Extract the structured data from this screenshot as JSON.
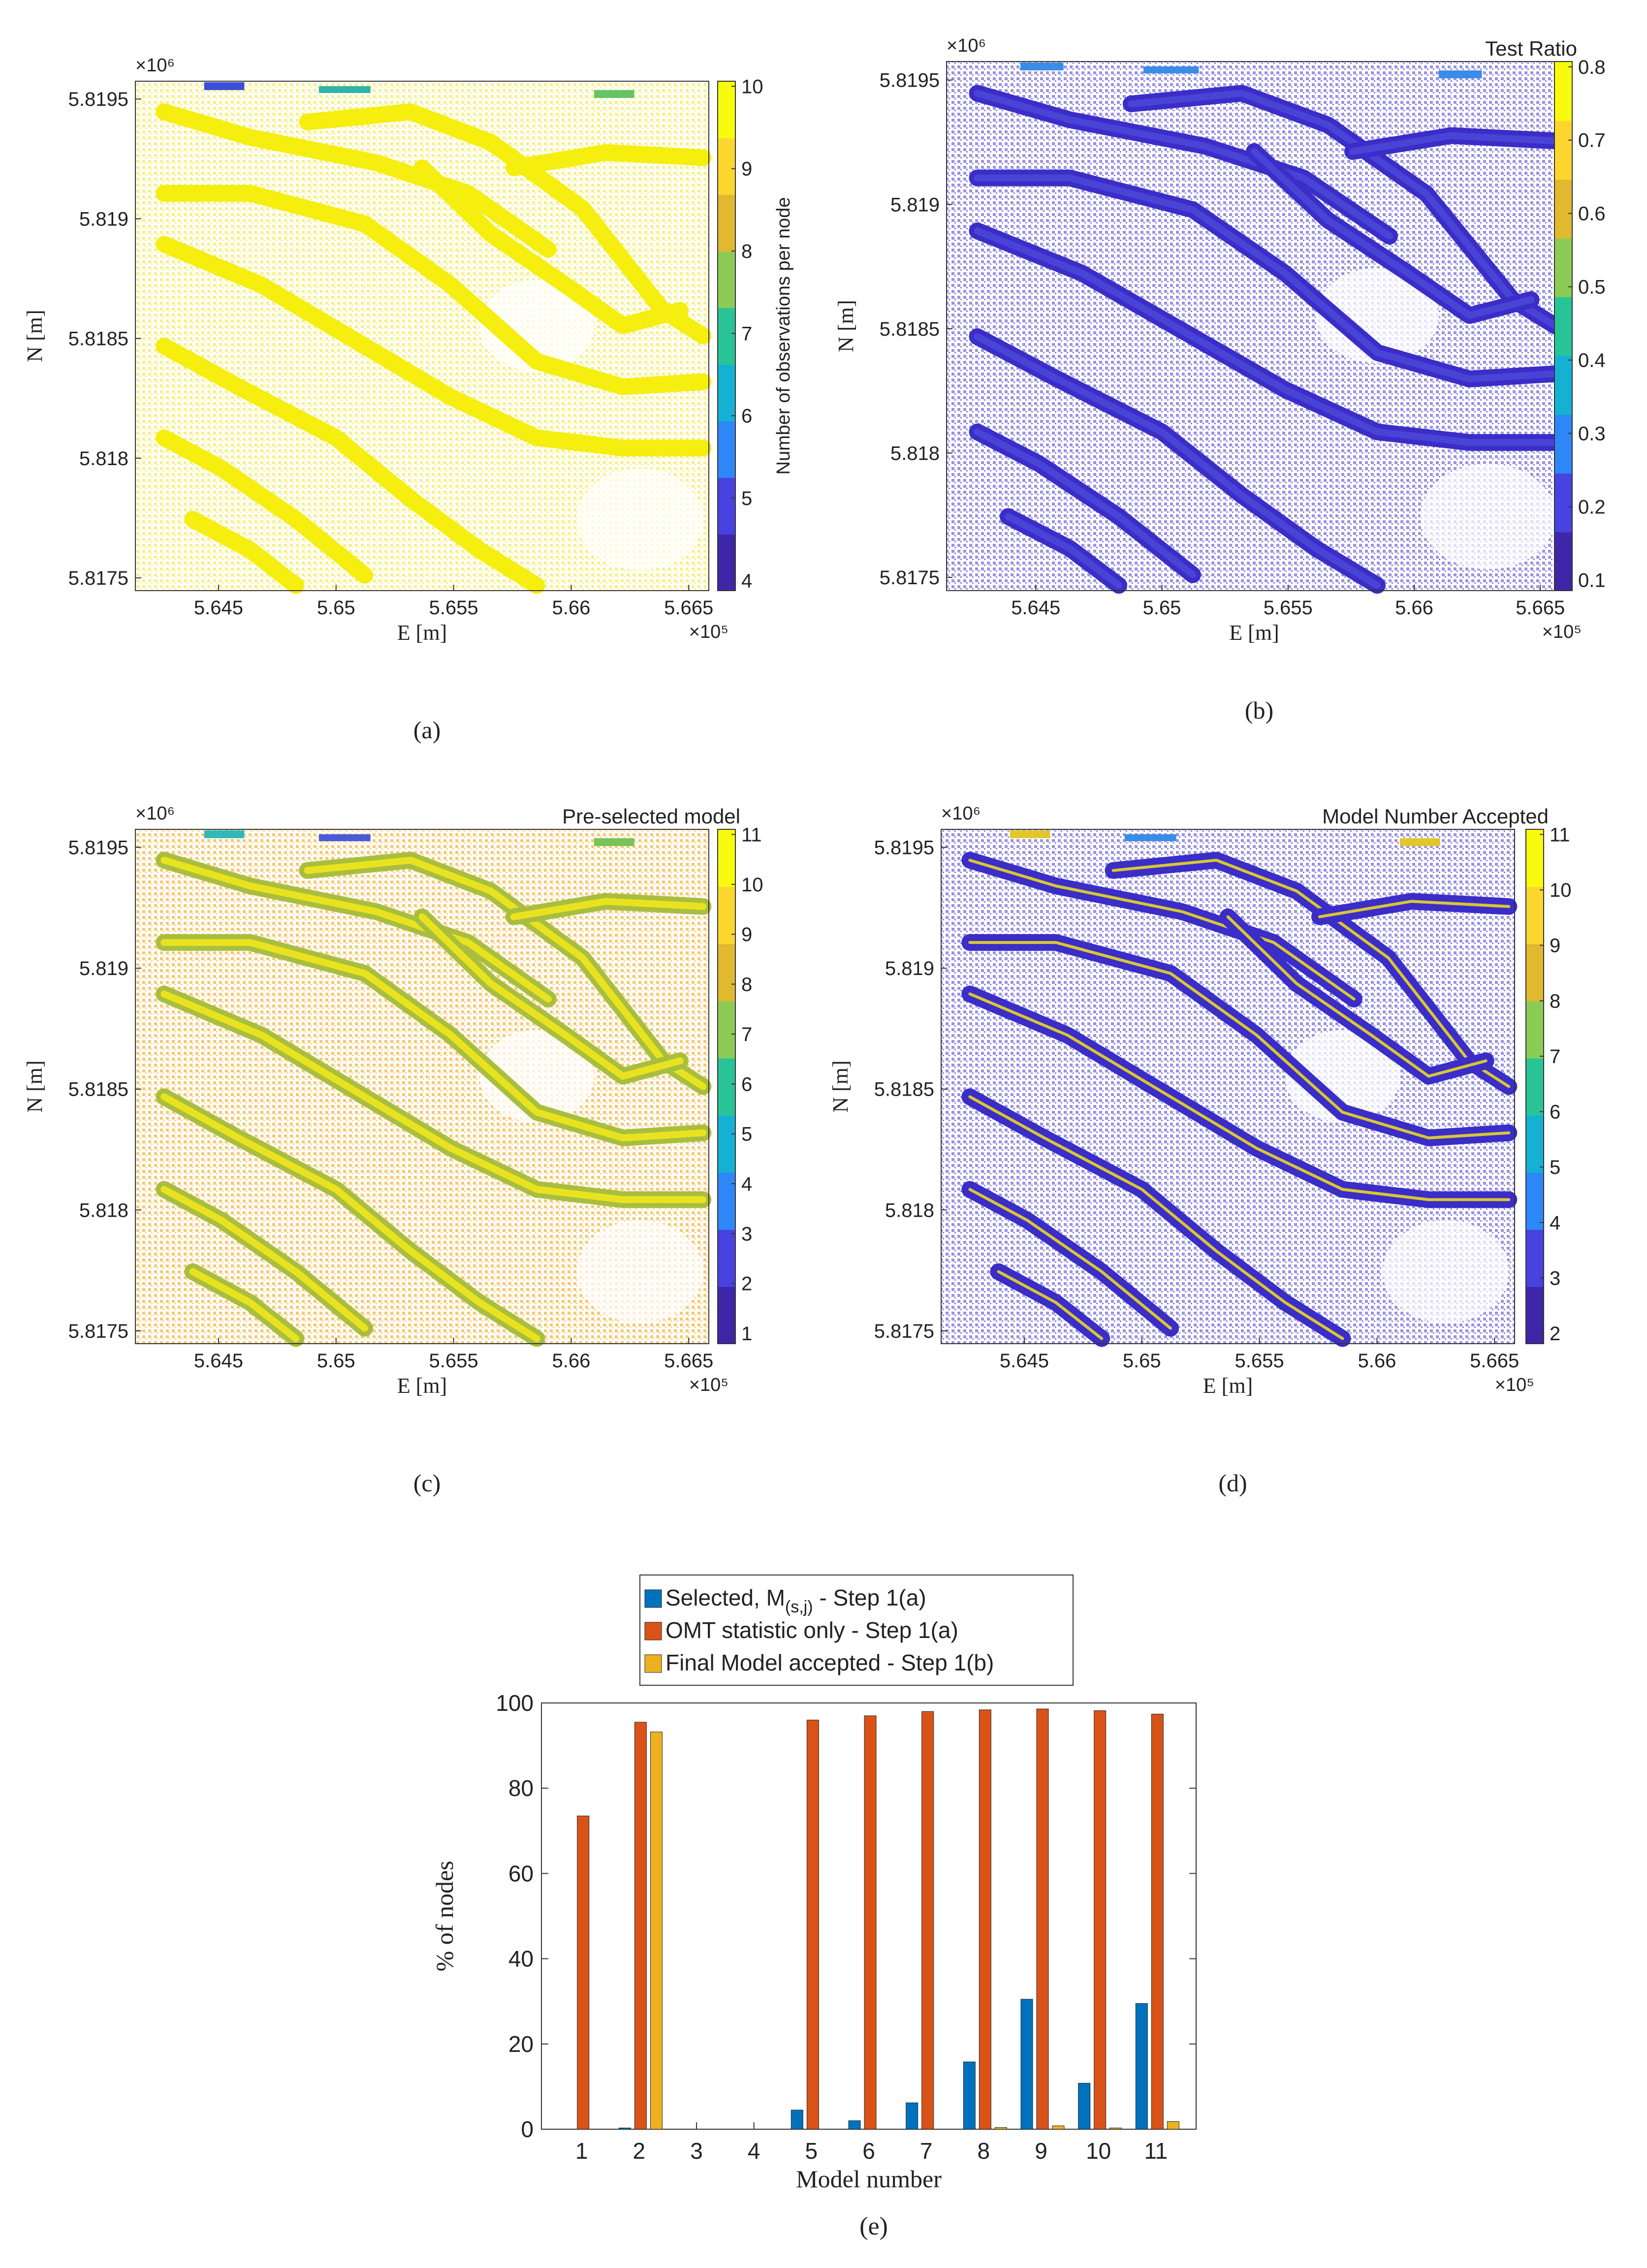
{
  "figure": {
    "panels": [
      {
        "label": "(a)",
        "letter": "a",
        "title": "",
        "xlabel": "E [m]",
        "ylabel": "N [m]",
        "x_ticks": [
          "5.645",
          "5.65",
          "5.655",
          "5.66",
          "5.665"
        ],
        "y_ticks": [
          "5.8195",
          "5.819",
          "5.8185",
          "5.818",
          "5.8175"
        ],
        "x_exponent": "×10⁵",
        "y_exponent": "×10⁶",
        "colorbar_label": "Number of observations per node",
        "colorbar_ticks": [
          "10",
          "9",
          "8",
          "7",
          "6",
          "5",
          "4"
        ],
        "dominant_color": "#f4ec1f",
        "background_texture": "#f6f08a",
        "stripe_colors": [
          "#f5ee0f",
          "#f5ee0f"
        ],
        "accent_colors": [
          "#3d4fd6",
          "#2fb4a8",
          "#65c465"
        ]
      },
      {
        "label": "(b)",
        "letter": "b",
        "title": "Test Ratio",
        "xlabel": "E [m]",
        "ylabel": "N [m]",
        "x_ticks": [
          "5.645",
          "5.65",
          "5.655",
          "5.66",
          "5.665"
        ],
        "y_ticks": [
          "5.8195",
          "5.819",
          "5.8185",
          "5.818",
          "5.8175"
        ],
        "x_exponent": "×10⁵",
        "y_exponent": "×10⁶",
        "colorbar_label": "",
        "colorbar_ticks": [
          "0.8",
          "0.7",
          "0.6",
          "0.5",
          "0.4",
          "0.3",
          "0.2",
          "0.1"
        ],
        "dominant_color": "#3b2fc9",
        "background_texture": "#9a93e3",
        "stripe_colors": [
          "#3a2dc8",
          "#4d49d8"
        ],
        "accent_colors": [
          "#3a8de6",
          "#3a8de6",
          "#3a8de6"
        ]
      },
      {
        "label": "(c)",
        "letter": "c",
        "title": "Pre-selected model",
        "xlabel": "E [m]",
        "ylabel": "N [m]",
        "x_ticks": [
          "5.645",
          "5.65",
          "5.655",
          "5.66",
          "5.665"
        ],
        "y_ticks": [
          "5.8195",
          "5.819",
          "5.8185",
          "5.818",
          "5.8175"
        ],
        "x_exponent": "×10⁵",
        "y_exponent": "×10⁶",
        "colorbar_label": "",
        "colorbar_ticks": [
          "11",
          "10",
          "9",
          "8",
          "7",
          "6",
          "5",
          "4",
          "3",
          "2",
          "1"
        ],
        "dominant_color": "#f6b733",
        "background_texture": "#f5c971",
        "stripe_colors": [
          "#a9be3f",
          "#f5ea1a"
        ],
        "accent_colors": [
          "#35b7b7",
          "#4a5bd9",
          "#7ac35a"
        ]
      },
      {
        "label": "(d)",
        "letter": "d",
        "title": "Model Number Accepted",
        "xlabel": "E [m]",
        "ylabel": "N [m]",
        "x_ticks": [
          "5.645",
          "5.65",
          "5.655",
          "5.66",
          "5.665"
        ],
        "y_ticks": [
          "5.8195",
          "5.819",
          "5.8185",
          "5.818",
          "5.8175"
        ],
        "x_exponent": "×10⁵",
        "y_exponent": "×10⁶",
        "colorbar_label": "",
        "colorbar_ticks": [
          "11",
          "10",
          "9",
          "8",
          "7",
          "6",
          "5",
          "4",
          "3",
          "2"
        ],
        "dominant_color": "#3b2fc9",
        "background_texture": "#9a93e3",
        "stripe_colors": [
          "#3a2dc8",
          "#f5e21a"
        ],
        "accent_colors": [
          "#e3c62b",
          "#3a8de6",
          "#e3c62b"
        ]
      }
    ],
    "bottom_label": "(e)"
  },
  "chart_data": {
    "type": "bar",
    "title": "",
    "xlabel": "Model number",
    "ylabel": "% of nodes",
    "categories": [
      "1",
      "2",
      "3",
      "4",
      "5",
      "6",
      "7",
      "8",
      "9",
      "10",
      "11"
    ],
    "ylim": [
      0,
      100
    ],
    "y_ticks": [
      "0",
      "20",
      "40",
      "60",
      "80",
      "100"
    ],
    "legend_position": "top-center",
    "series": [
      {
        "name": "Selected, M(s,j) - Step 1(a)",
        "legend_main": "Selected, M",
        "legend_sub": "(s,j)",
        "legend_tail": " - Step 1(a)",
        "color": "#0072bd",
        "values": [
          0,
          0.3,
          0,
          0,
          4.5,
          2,
          6.2,
          15.8,
          30.5,
          10.8,
          29.5
        ]
      },
      {
        "name": "OMT statistic only - Step 1(a)",
        "legend_main": "OMT statistic only - Step 1(a)",
        "legend_sub": "",
        "legend_tail": "",
        "color": "#d95319",
        "values": [
          73.5,
          95.5,
          0,
          0,
          96,
          97,
          98,
          98.4,
          98.6,
          98.2,
          97.4
        ]
      },
      {
        "name": "Final Model accepted - Step 1(b)",
        "legend_main": "Final Model accepted - Step 1(b)",
        "legend_sub": "",
        "legend_tail": "",
        "color": "#edb120",
        "values": [
          0,
          93.2,
          0,
          0,
          0,
          0,
          0,
          0.4,
          0.8,
          0.3,
          1.8
        ]
      }
    ]
  },
  "colormap": [
    "#3e26a8",
    "#4742e0",
    "#2e87f7",
    "#15b1d3",
    "#28c497",
    "#8ccb55",
    "#e1b92f",
    "#fcd62f",
    "#f9fb0e"
  ]
}
